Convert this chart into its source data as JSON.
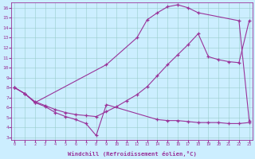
{
  "xlabel": "Windchill (Refroidissement éolien,°C)",
  "bg_color": "#cceeff",
  "line_color": "#993399",
  "grid_color": "#99cccc",
  "xlim": [
    -0.3,
    23.3
  ],
  "ylim": [
    2.8,
    16.5
  ],
  "xticks": [
    0,
    1,
    2,
    3,
    4,
    5,
    6,
    7,
    8,
    9,
    10,
    11,
    12,
    13,
    14,
    15,
    16,
    17,
    18,
    19,
    20,
    21,
    22,
    23
  ],
  "yticks": [
    3,
    4,
    5,
    6,
    7,
    8,
    9,
    10,
    11,
    12,
    13,
    14,
    15,
    16
  ],
  "curve_top_x": [
    0,
    1,
    2,
    9,
    12,
    13,
    14,
    15,
    16,
    17,
    18,
    22,
    23
  ],
  "curve_top_y": [
    8.0,
    7.4,
    6.5,
    10.3,
    13.0,
    14.8,
    15.5,
    16.1,
    16.3,
    16.0,
    15.5,
    14.7,
    4.7
  ],
  "curve_mid_x": [
    0,
    1,
    2,
    3,
    4,
    5,
    6,
    7,
    8,
    9,
    10,
    11,
    12,
    13,
    14,
    15,
    16,
    17,
    18,
    19,
    20,
    21,
    22,
    23
  ],
  "curve_mid_y": [
    8.0,
    7.4,
    6.6,
    6.2,
    5.8,
    5.5,
    5.3,
    5.2,
    5.1,
    5.6,
    6.1,
    6.7,
    7.3,
    8.1,
    9.2,
    10.3,
    11.3,
    12.3,
    13.4,
    11.1,
    10.8,
    10.6,
    10.5,
    14.7
  ],
  "curve_bot_x": [
    0,
    1,
    2,
    3,
    4,
    5,
    6,
    7,
    8,
    9,
    14,
    15,
    16,
    17,
    18,
    19,
    20,
    21,
    22,
    23
  ],
  "curve_bot_y": [
    8.0,
    7.4,
    6.5,
    6.1,
    5.5,
    5.1,
    4.8,
    4.4,
    3.2,
    6.3,
    4.8,
    4.7,
    4.7,
    4.6,
    4.5,
    4.5,
    4.5,
    4.4,
    4.4,
    4.5
  ]
}
